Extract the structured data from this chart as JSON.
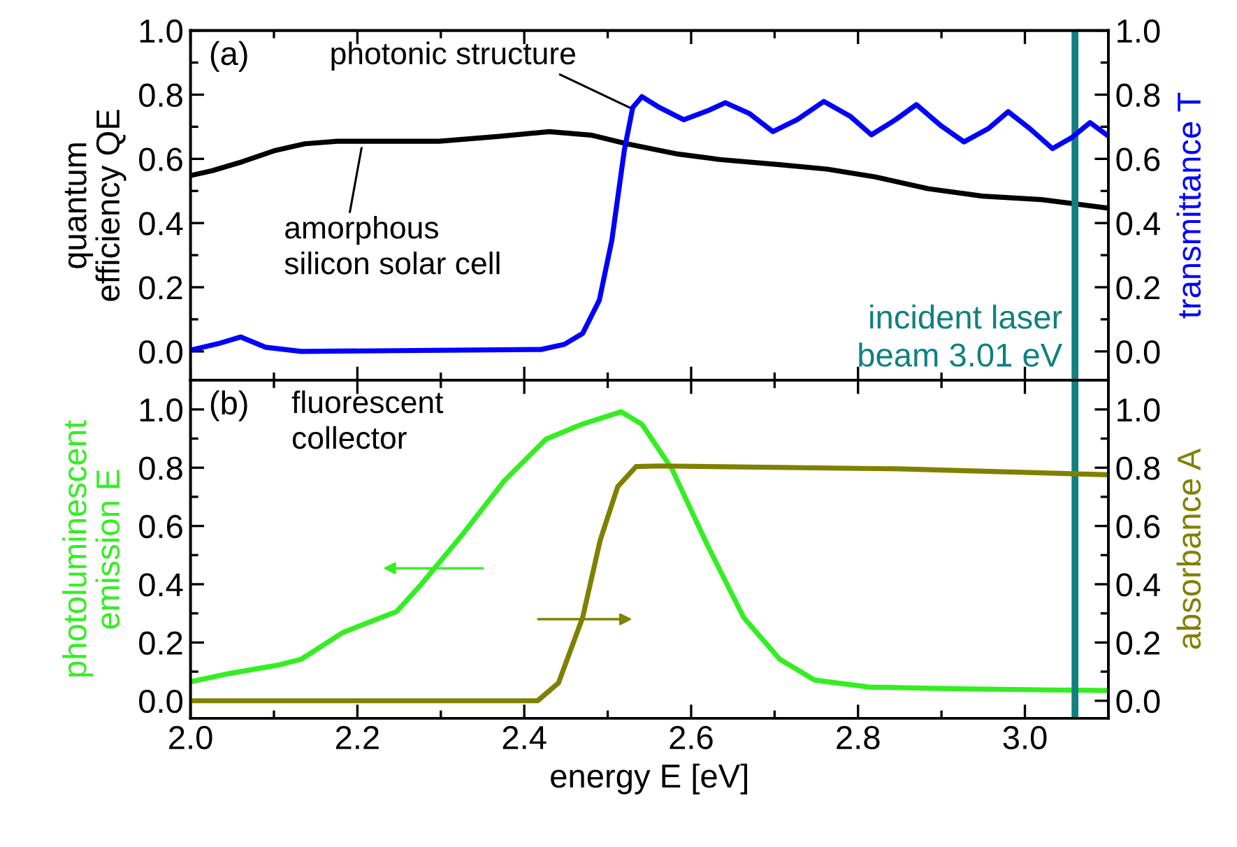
{
  "chart_data": [
    {
      "type": "line",
      "xlim": [
        2.0,
        3.1
      ],
      "ylim": [
        -0.09,
        1.0
      ],
      "y2lim": [
        -0.09,
        1.0
      ],
      "xticks": [
        {
          "value": 2.0,
          "label": null
        },
        {
          "value": 2.2,
          "label": null
        },
        {
          "value": 2.4,
          "label": null
        },
        {
          "value": 2.6,
          "label": null
        },
        {
          "value": 2.8,
          "label": null
        },
        {
          "value": 3.0,
          "label": null
        }
      ],
      "yticks": [
        {
          "value": 0.0,
          "label": "0.0"
        },
        {
          "value": 0.2,
          "label": "0.2"
        },
        {
          "value": 0.4,
          "label": "0.4"
        },
        {
          "value": 0.6,
          "label": "0.6"
        },
        {
          "value": 0.8,
          "label": "0.8"
        },
        {
          "value": 1.0,
          "label": "1.0"
        }
      ],
      "y2ticks": [
        {
          "value": 0.0,
          "label": "0.0"
        },
        {
          "value": 0.2,
          "label": "0.2"
        },
        {
          "value": 0.4,
          "label": "0.4"
        },
        {
          "value": 0.6,
          "label": "0.6"
        },
        {
          "value": 0.8,
          "label": "0.8"
        },
        {
          "value": 1.0,
          "label": "1.0"
        }
      ],
      "ylabel": "quantum\nefficiency QE",
      "y2label": "transmittance T",
      "tick_labels": "y",
      "grid": false,
      "marker": "none",
      "line_style": "solid",
      "series": [
        {
          "color": "#000000",
          "x": [
            2.0,
            2.026,
            2.062,
            2.1,
            2.137,
            2.176,
            2.298,
            2.37,
            2.43,
            2.48,
            2.523,
            2.584,
            2.634,
            2.706,
            2.763,
            2.82,
            2.884,
            2.949,
            3.02,
            3.098
          ],
          "values": [
            0.548,
            0.563,
            0.591,
            0.625,
            0.647,
            0.655,
            0.655,
            0.67,
            0.685,
            0.674,
            0.647,
            0.615,
            0.598,
            0.582,
            0.568,
            0.544,
            0.507,
            0.484,
            0.473,
            0.447
          ]
        },
        {
          "color": "#0000ff",
          "axis": "y2",
          "x": [
            2.0,
            2.033,
            2.06,
            2.09,
            2.133,
            2.42,
            2.448,
            2.47,
            2.49,
            2.505,
            2.52,
            2.53,
            2.541,
            2.562,
            2.591,
            2.62,
            2.641,
            2.67,
            2.698,
            2.727,
            2.759,
            2.791,
            2.816,
            2.845,
            2.87,
            2.899,
            2.927,
            2.956,
            2.98,
            3.006,
            3.033,
            3.056,
            3.078,
            3.098
          ],
          "values": [
            0.004,
            0.024,
            0.045,
            0.013,
            0.0,
            0.006,
            0.022,
            0.056,
            0.16,
            0.347,
            0.628,
            0.76,
            0.794,
            0.76,
            0.722,
            0.75,
            0.775,
            0.741,
            0.685,
            0.722,
            0.779,
            0.732,
            0.675,
            0.722,
            0.769,
            0.704,
            0.653,
            0.694,
            0.747,
            0.694,
            0.632,
            0.666,
            0.713,
            0.675
          ]
        }
      ],
      "ref_lines": [
        {
          "axis": "x",
          "value": 3.06,
          "label": "incident laser\nbeam 3.01 eV",
          "color": "#108080"
        }
      ],
      "annotations": [
        "(a)",
        {
          "text": "photonic structure",
          "x": 2.531,
          "y": 0.754
        },
        {
          "text": "amorphous\nsilicon solar cell",
          "x": 2.205,
          "y": 0.634
        }
      ]
    },
    {
      "type": "line",
      "xlim": [
        2.0,
        3.1
      ],
      "ylim": [
        -0.06,
        1.1
      ],
      "y2lim": [
        -0.06,
        1.1
      ],
      "xticks": [
        {
          "value": 2.0,
          "label": "2.0"
        },
        {
          "value": 2.2,
          "label": "2.2"
        },
        {
          "value": 2.4,
          "label": "2.4"
        },
        {
          "value": 2.6,
          "label": "2.6"
        },
        {
          "value": 2.8,
          "label": "2.8"
        },
        {
          "value": 3.0,
          "label": "3.0"
        }
      ],
      "yticks": [
        {
          "value": 0.0,
          "label": "0.0"
        },
        {
          "value": 0.2,
          "label": "0.2"
        },
        {
          "value": 0.4,
          "label": "0.4"
        },
        {
          "value": 0.6,
          "label": "0.6"
        },
        {
          "value": 0.8,
          "label": "0.8"
        },
        {
          "value": 1.0,
          "label": "1.0"
        }
      ],
      "y2ticks": [
        {
          "value": 0.0,
          "label": "0.0"
        },
        {
          "value": 0.2,
          "label": "0.2"
        },
        {
          "value": 0.4,
          "label": "0.4"
        },
        {
          "value": 0.6,
          "label": "0.6"
        },
        {
          "value": 0.8,
          "label": "0.8"
        },
        {
          "value": 1.0,
          "label": "1.0"
        }
      ],
      "xlabel": "energy E [eV]",
      "ylabel": "photoluminescent\nemission E",
      "y2label": "absorbance A",
      "grid": false,
      "marker": "none",
      "line_style": "solid",
      "series": [
        {
          "color": "#33ee22",
          "x": [
            2.0,
            2.047,
            2.104,
            2.133,
            2.183,
            2.247,
            2.276,
            2.326,
            2.376,
            2.426,
            2.469,
            2.516,
            2.541,
            2.577,
            2.62,
            2.663,
            2.706,
            2.748,
            2.813,
            2.92,
            3.098
          ],
          "values": [
            0.065,
            0.094,
            0.122,
            0.143,
            0.235,
            0.306,
            0.398,
            0.571,
            0.755,
            0.898,
            0.949,
            0.992,
            0.949,
            0.796,
            0.531,
            0.286,
            0.143,
            0.071,
            0.047,
            0.041,
            0.035
          ]
        },
        {
          "color": "#808000",
          "axis": "y2",
          "x": [
            2.0,
            2.416,
            2.441,
            2.47,
            2.491,
            2.512,
            2.534,
            2.562,
            2.849,
            3.098
          ],
          "values": [
            0.0,
            0.0,
            0.061,
            0.286,
            0.551,
            0.735,
            0.804,
            0.806,
            0.796,
            0.776
          ]
        }
      ],
      "ref_lines": [
        {
          "axis": "x",
          "value": 3.06,
          "color": "#108080"
        }
      ],
      "annotations": [
        "(b)",
        "fluorescent\ncollector"
      ]
    }
  ]
}
